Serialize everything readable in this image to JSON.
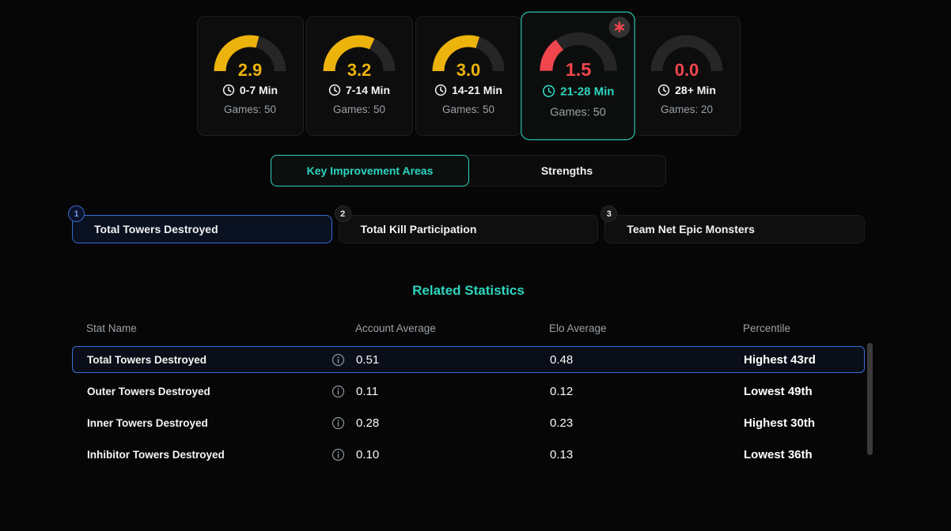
{
  "colors": {
    "teal": "#2dd4bf",
    "yellow": "#edb30d",
    "red": "#f2464e",
    "blue": "#3a6bd8",
    "track": "#262626",
    "muted_text": "#9aa0a6"
  },
  "gauge_panel": {
    "cards": [
      {
        "value": "2.9",
        "numeric": 2.9,
        "max": 5,
        "range_label": "0-7 Min",
        "games_label": "Games: 50",
        "color": "yellow",
        "selected": false,
        "has_alert_badge": false
      },
      {
        "value": "3.2",
        "numeric": 3.2,
        "max": 5,
        "range_label": "7-14 Min",
        "games_label": "Games: 50",
        "color": "yellow",
        "selected": false,
        "has_alert_badge": false
      },
      {
        "value": "3.0",
        "numeric": 3.0,
        "max": 5,
        "range_label": "14-21 Min",
        "games_label": "Games: 50",
        "color": "yellow",
        "selected": false,
        "has_alert_badge": false
      },
      {
        "value": "1.5",
        "numeric": 1.5,
        "max": 5,
        "range_label": "21-28 Min",
        "games_label": "Games: 50",
        "color": "red",
        "selected": true,
        "has_alert_badge": true
      },
      {
        "value": "0.0",
        "numeric": 0.0,
        "max": 5,
        "range_label": "28+ Min",
        "games_label": "Games: 20",
        "color": "red",
        "selected": false,
        "has_alert_badge": false
      }
    ]
  },
  "tabs": [
    {
      "label": "Key Improvement Areas",
      "selected": true
    },
    {
      "label": "Strengths",
      "selected": false
    }
  ],
  "improvement_items": [
    {
      "number": "1",
      "label": "Total Towers Destroyed",
      "selected": true
    },
    {
      "number": "2",
      "label": "Total Kill Participation",
      "selected": false
    },
    {
      "number": "3",
      "label": "Team Net Epic Monsters",
      "selected": false
    }
  ],
  "related_statistics": {
    "title": "Related Statistics",
    "columns": [
      "Stat Name",
      "Account Average",
      "Elo Average",
      "Percentile"
    ],
    "rows": [
      {
        "stat": "Total Towers Destroyed",
        "account_average": "0.51",
        "elo_average": "0.48",
        "percentile": "Highest 43rd",
        "selected": true
      },
      {
        "stat": "Outer Towers Destroyed",
        "account_average": "0.11",
        "elo_average": "0.12",
        "percentile": "Lowest 49th",
        "selected": false
      },
      {
        "stat": "Inner Towers Destroyed",
        "account_average": "0.28",
        "elo_average": "0.23",
        "percentile": "Highest 30th",
        "selected": false
      },
      {
        "stat": "Inhibitor Towers Destroyed",
        "account_average": "0.10",
        "elo_average": "0.13",
        "percentile": "Lowest 36th",
        "selected": false
      }
    ]
  },
  "icons": {
    "card_time": "clock-icon",
    "selected_card_badge": "asterisk-icon",
    "row_info": "info-icon"
  }
}
